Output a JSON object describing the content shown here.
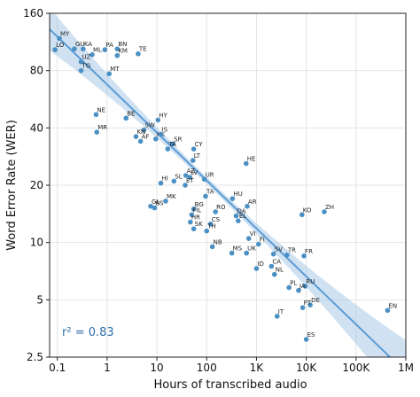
{
  "chart_data": {
    "type": "scatter",
    "x_scale": "log",
    "y_scale": "log",
    "xlabel": "Hours of transcribed audio",
    "ylabel": "Word Error Rate (WER)",
    "xlim": [
      0.07,
      1000000
    ],
    "ylim": [
      2.5,
      160
    ],
    "x_ticks": [
      {
        "value": 0.1,
        "label": "0.1"
      },
      {
        "value": 1,
        "label": "1"
      },
      {
        "value": 10,
        "label": "10"
      },
      {
        "value": 100,
        "label": "100"
      },
      {
        "value": 1000,
        "label": "1K"
      },
      {
        "value": 10000,
        "label": "10K"
      },
      {
        "value": 100000,
        "label": "100K"
      },
      {
        "value": 1000000,
        "label": "1M"
      }
    ],
    "y_ticks": [
      {
        "value": 2.5,
        "label": "2.5"
      },
      {
        "value": 5,
        "label": "5"
      },
      {
        "value": 10,
        "label": "10"
      },
      {
        "value": 20,
        "label": "20"
      },
      {
        "value": 40,
        "label": "40"
      },
      {
        "value": 80,
        "label": "80"
      },
      {
        "value": 160,
        "label": "160"
      }
    ],
    "grid": true,
    "annotation": "r² = 0.83",
    "colors": {
      "points": "#4a90c4",
      "fit": "#5b9bd5",
      "band": "#a9cbe8",
      "annotation": "#2e6fa8"
    },
    "fit_line": {
      "x": [
        0.07,
        1000000
      ],
      "y": [
        132,
        2.08
      ]
    },
    "points": [
      {
        "label": "MY",
        "x": 0.11,
        "y": 118
      },
      {
        "label": "LO",
        "x": 0.09,
        "y": 103
      },
      {
        "label": "GU",
        "x": 0.22,
        "y": 104
      },
      {
        "label": "KA",
        "x": 0.33,
        "y": 104
      },
      {
        "label": "PA",
        "x": 0.9,
        "y": 103
      },
      {
        "label": "BN",
        "x": 1.6,
        "y": 104
      },
      {
        "label": "TE",
        "x": 4.2,
        "y": 98
      },
      {
        "label": "ML",
        "x": 0.5,
        "y": 97
      },
      {
        "label": "KM",
        "x": 1.6,
        "y": 96
      },
      {
        "label": "UZ",
        "x": 0.3,
        "y": 89
      },
      {
        "label": "TG",
        "x": 0.3,
        "y": 80
      },
      {
        "label": "MT",
        "x": 1.1,
        "y": 77
      },
      {
        "label": "NE",
        "x": 0.6,
        "y": 47
      },
      {
        "label": "MR",
        "x": 0.62,
        "y": 38
      },
      {
        "label": "BE",
        "x": 2.4,
        "y": 45
      },
      {
        "label": "HY",
        "x": 10.5,
        "y": 44
      },
      {
        "label": "SW",
        "x": 5.5,
        "y": 39
      },
      {
        "label": "KN",
        "x": 3.8,
        "y": 36
      },
      {
        "label": "AF",
        "x": 4.7,
        "y": 34
      },
      {
        "label": "KK",
        "x": 9.5,
        "y": 35
      },
      {
        "label": "IS",
        "x": 12,
        "y": 37
      },
      {
        "label": "SR",
        "x": 21,
        "y": 33
      },
      {
        "label": "TA",
        "x": 16.5,
        "y": 31
      },
      {
        "label": "CY",
        "x": 55,
        "y": 31
      },
      {
        "label": "LT",
        "x": 53,
        "y": 27
      },
      {
        "label": "HE",
        "x": 620,
        "y": 26
      },
      {
        "label": "AZ",
        "x": 38,
        "y": 22.5
      },
      {
        "label": "LV",
        "x": 46,
        "y": 22
      },
      {
        "label": "UR",
        "x": 90,
        "y": 21.5
      },
      {
        "label": "HI",
        "x": 12,
        "y": 20.5
      },
      {
        "label": "SL",
        "x": 22,
        "y": 21
      },
      {
        "label": "ET",
        "x": 37,
        "y": 20
      },
      {
        "label": "TA",
        "x": 95,
        "y": 17.5
      },
      {
        "label": "MK",
        "x": 15,
        "y": 16.5
      },
      {
        "label": "HU",
        "x": 330,
        "y": 17
      },
      {
        "label": "GL",
        "x": 7.5,
        "y": 15.5
      },
      {
        "label": "BS",
        "x": 9,
        "y": 15.2
      },
      {
        "label": "AR",
        "x": 650,
        "y": 15.5
      },
      {
        "label": "BG",
        "x": 55,
        "y": 15
      },
      {
        "label": "RO",
        "x": 150,
        "y": 14.5
      },
      {
        "label": "KO",
        "x": 8200,
        "y": 14
      },
      {
        "label": "ZH",
        "x": 23000,
        "y": 14.5
      },
      {
        "label": "FIL",
        "x": 50,
        "y": 14
      },
      {
        "label": "DA",
        "x": 390,
        "y": 13.8
      },
      {
        "label": "HR",
        "x": 47,
        "y": 12.8
      },
      {
        "label": "CS",
        "x": 120,
        "y": 12.5
      },
      {
        "label": "EL",
        "x": 430,
        "y": 13
      },
      {
        "label": "SK",
        "x": 55,
        "y": 11.8
      },
      {
        "label": "TH",
        "x": 100,
        "y": 11.5
      },
      {
        "label": "VI",
        "x": 700,
        "y": 10.5
      },
      {
        "label": "NB",
        "x": 130,
        "y": 9.5
      },
      {
        "label": "FI",
        "x": 1100,
        "y": 9.8
      },
      {
        "label": "MS",
        "x": 320,
        "y": 8.8
      },
      {
        "label": "UK",
        "x": 630,
        "y": 8.8
      },
      {
        "label": "SV",
        "x": 2200,
        "y": 8.7
      },
      {
        "label": "TR",
        "x": 4100,
        "y": 8.6
      },
      {
        "label": "FR",
        "x": 9000,
        "y": 8.5
      },
      {
        "label": "ID",
        "x": 1000,
        "y": 7.3
      },
      {
        "label": "CA",
        "x": 2000,
        "y": 7.5
      },
      {
        "label": "NL",
        "x": 2300,
        "y": 6.8
      },
      {
        "label": "PL",
        "x": 4500,
        "y": 5.8
      },
      {
        "label": "RU",
        "x": 9500,
        "y": 5.9
      },
      {
        "label": "JA",
        "x": 7000,
        "y": 5.6
      },
      {
        "label": "DE",
        "x": 12000,
        "y": 4.7
      },
      {
        "label": "PT",
        "x": 8500,
        "y": 4.55
      },
      {
        "label": "EN",
        "x": 430000,
        "y": 4.4
      },
      {
        "label": "IT",
        "x": 2600,
        "y": 4.1
      },
      {
        "label": "ES",
        "x": 10000,
        "y": 3.1
      }
    ]
  }
}
